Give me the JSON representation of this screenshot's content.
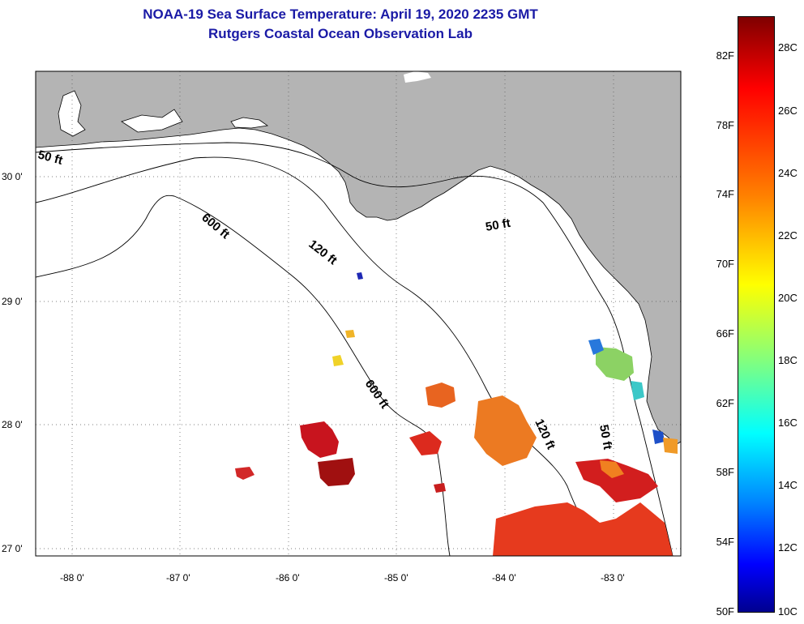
{
  "title": {
    "line1": "NOAA-19 Sea Surface Temperature:  April 19, 2020 2235 GMT",
    "line2": "Rutgers Coastal Ocean Observation Lab"
  },
  "axes": {
    "lon_ticks": [
      "-88 0'",
      "-87 0'",
      "-86 0'",
      "-85 0'",
      "-84 0'",
      "-83 0'"
    ],
    "lat_ticks": [
      "30 0'",
      "29 0'",
      "28 0'",
      "27 0'"
    ]
  },
  "contours": {
    "label_50ft": "50 ft",
    "label_120ft": "120 ft",
    "label_600ft": "600 ft"
  },
  "colorbar": {
    "fahrenheit": [
      "82F",
      "78F",
      "74F",
      "70F",
      "66F",
      "62F",
      "58F",
      "54F",
      "50F"
    ],
    "celsius": [
      "28C",
      "26C",
      "24C",
      "22C",
      "20C",
      "18C",
      "16C",
      "14C",
      "12C",
      "10C"
    ]
  },
  "colors": {
    "land": "#b4b4b4",
    "title": "#1a1aa6",
    "sst_warm": "#e6321e",
    "sst_orange": "#f0781e",
    "sst_dark": "#b41414"
  }
}
